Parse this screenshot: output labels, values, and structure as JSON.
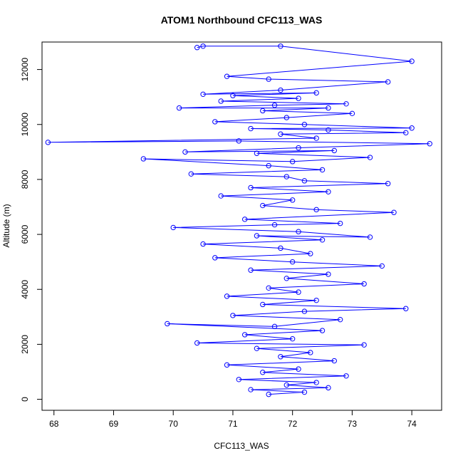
{
  "chart_data": {
    "type": "scatter",
    "title": "ATOM1 Northbound CFC113_WAS",
    "xlabel": "CFC113_WAS",
    "ylabel": "Altitude (m)",
    "xlim": [
      67.8,
      74.5
    ],
    "ylim": [
      -400,
      13000
    ],
    "x_ticks": [
      68,
      69,
      70,
      71,
      72,
      73,
      74
    ],
    "y_ticks": [
      0,
      2000,
      4000,
      6000,
      8000,
      10000,
      12000
    ],
    "grid": false,
    "series": [
      {
        "color": "#0000ff",
        "marker": "open-circle",
        "connected": true,
        "points": [
          [
            71.6,
            180
          ],
          [
            72.2,
            260
          ],
          [
            71.3,
            350
          ],
          [
            72.6,
            420
          ],
          [
            71.9,
            520
          ],
          [
            72.4,
            610
          ],
          [
            71.1,
            720
          ],
          [
            72.9,
            850
          ],
          [
            71.5,
            980
          ],
          [
            72.1,
            1100
          ],
          [
            70.9,
            1250
          ],
          [
            72.7,
            1400
          ],
          [
            71.8,
            1550
          ],
          [
            72.3,
            1700
          ],
          [
            71.4,
            1850
          ],
          [
            73.2,
            1980
          ],
          [
            70.4,
            2050
          ],
          [
            72.0,
            2200
          ],
          [
            71.2,
            2350
          ],
          [
            72.5,
            2500
          ],
          [
            69.9,
            2750
          ],
          [
            71.7,
            2650
          ],
          [
            72.8,
            2900
          ],
          [
            71.0,
            3050
          ],
          [
            72.2,
            3200
          ],
          [
            73.9,
            3300
          ],
          [
            71.5,
            3450
          ],
          [
            72.4,
            3600
          ],
          [
            70.9,
            3750
          ],
          [
            72.1,
            3900
          ],
          [
            71.6,
            4050
          ],
          [
            73.2,
            4200
          ],
          [
            71.9,
            4400
          ],
          [
            72.6,
            4550
          ],
          [
            71.3,
            4700
          ],
          [
            73.5,
            4850
          ],
          [
            72.0,
            5000
          ],
          [
            70.7,
            5150
          ],
          [
            72.3,
            5300
          ],
          [
            71.8,
            5500
          ],
          [
            70.5,
            5650
          ],
          [
            72.5,
            5800
          ],
          [
            71.4,
            5950
          ],
          [
            73.3,
            5900
          ],
          [
            72.1,
            6100
          ],
          [
            70.0,
            6250
          ],
          [
            71.7,
            6350
          ],
          [
            72.8,
            6400
          ],
          [
            71.2,
            6550
          ],
          [
            73.7,
            6800
          ],
          [
            72.4,
            6900
          ],
          [
            71.5,
            7050
          ],
          [
            72.0,
            7250
          ],
          [
            70.8,
            7400
          ],
          [
            72.6,
            7550
          ],
          [
            71.3,
            7700
          ],
          [
            73.6,
            7850
          ],
          [
            72.2,
            7950
          ],
          [
            71.9,
            8100
          ],
          [
            70.3,
            8200
          ],
          [
            72.5,
            8350
          ],
          [
            71.6,
            8500
          ],
          [
            69.5,
            8750
          ],
          [
            72.0,
            8650
          ],
          [
            73.3,
            8800
          ],
          [
            71.4,
            8950
          ],
          [
            72.7,
            9050
          ],
          [
            70.2,
            9000
          ],
          [
            72.1,
            9150
          ],
          [
            74.3,
            9300
          ],
          [
            71.1,
            9400
          ],
          [
            67.9,
            9350
          ],
          [
            72.4,
            9500
          ],
          [
            71.8,
            9650
          ],
          [
            73.9,
            9700
          ],
          [
            72.6,
            9800
          ],
          [
            71.3,
            9850
          ],
          [
            74.0,
            9870
          ],
          [
            72.2,
            10000
          ],
          [
            70.7,
            10100
          ],
          [
            71.9,
            10250
          ],
          [
            73.0,
            10400
          ],
          [
            71.5,
            10500
          ],
          [
            72.6,
            10600
          ],
          [
            70.1,
            10600
          ],
          [
            71.7,
            10700
          ],
          [
            72.9,
            10750
          ],
          [
            70.8,
            10850
          ],
          [
            72.1,
            10950
          ],
          [
            71.0,
            11050
          ],
          [
            72.4,
            11150
          ],
          [
            70.5,
            11100
          ],
          [
            71.8,
            11250
          ],
          [
            73.6,
            11550
          ],
          [
            71.6,
            11650
          ],
          [
            70.9,
            11750
          ],
          [
            74.0,
            12300
          ],
          [
            71.8,
            12850
          ],
          [
            70.5,
            12850
          ],
          [
            70.4,
            12800
          ]
        ]
      }
    ]
  }
}
